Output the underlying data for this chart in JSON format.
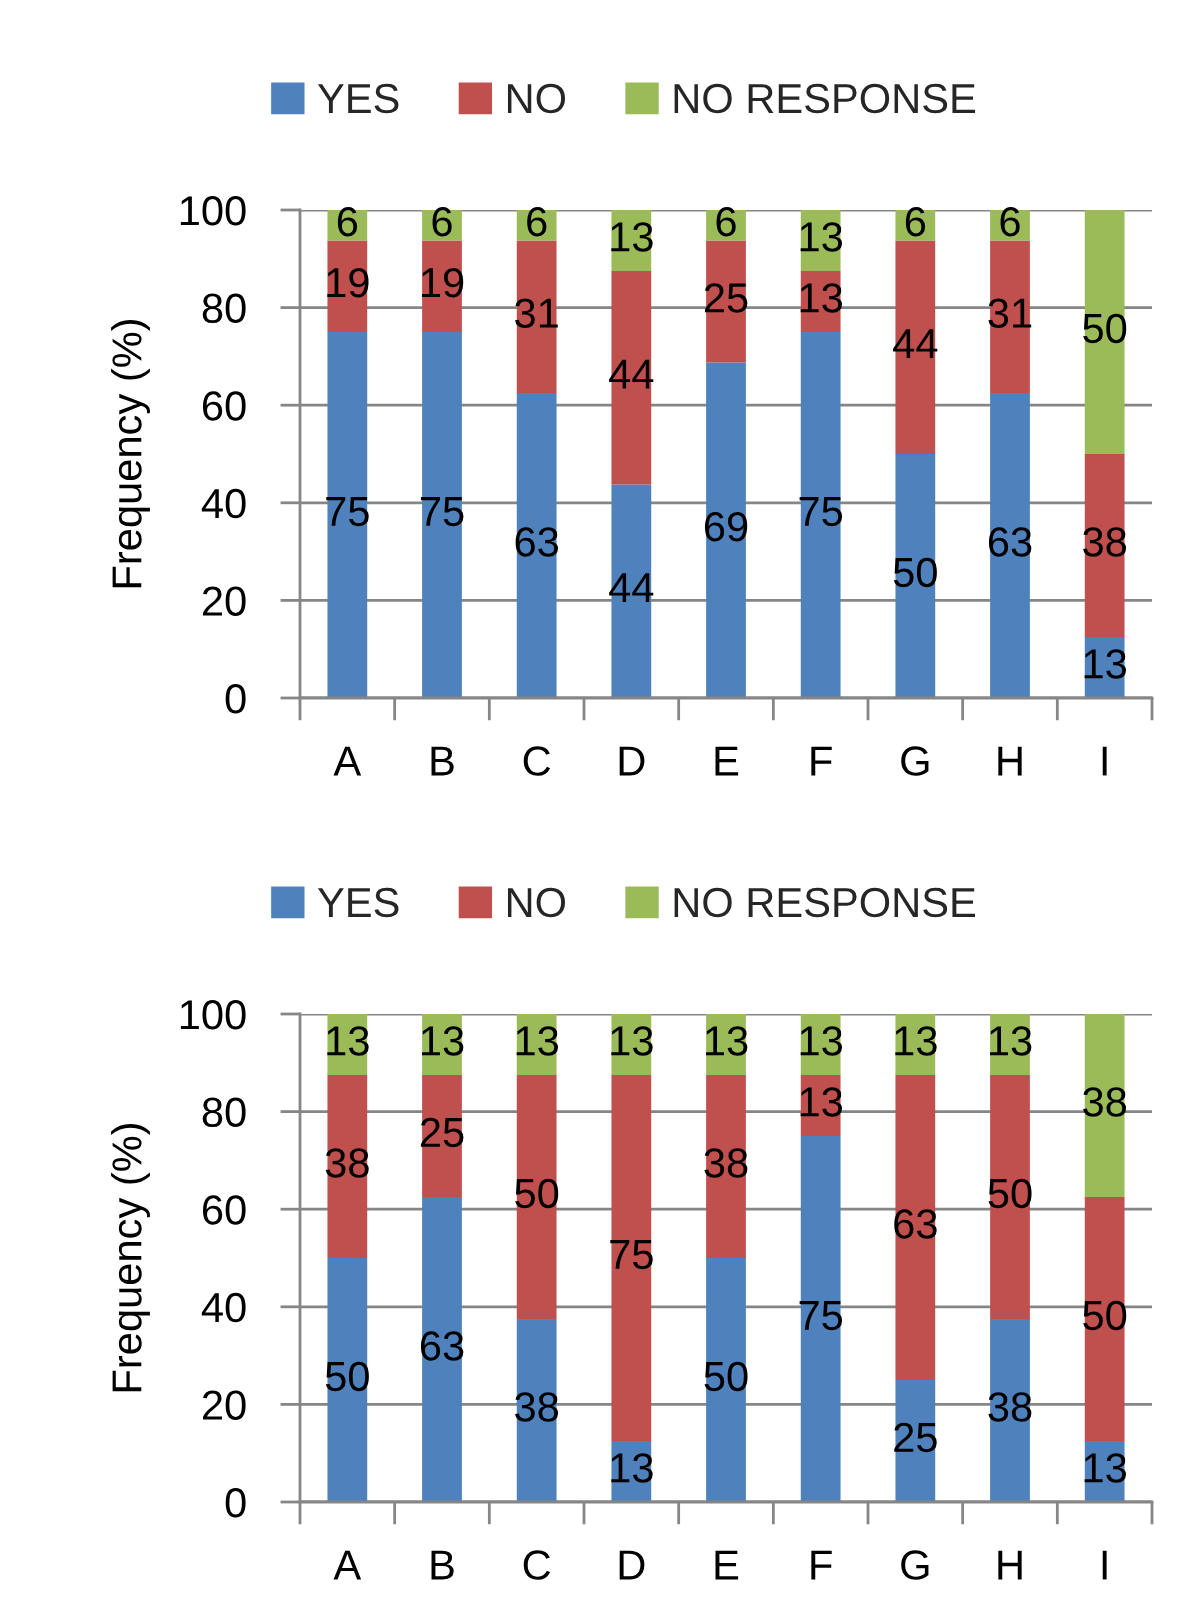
{
  "chart_data": [
    {
      "type": "bar",
      "stacked": true,
      "ylabel": "Frequency (%)",
      "categories": [
        "A",
        "B",
        "C",
        "D",
        "E",
        "F",
        "G",
        "H",
        "I"
      ],
      "series": [
        {
          "name": "YES",
          "color": "#4f81bd",
          "values": [
            75,
            75,
            62.5,
            43.75,
            68.75,
            75,
            50,
            62.5,
            12.5
          ],
          "value_labels": [
            "75",
            "75",
            "63",
            "44",
            "69",
            "75",
            "50",
            "63",
            "13"
          ]
        },
        {
          "name": "NO",
          "color": "#c0504d",
          "values": [
            18.75,
            18.75,
            31.25,
            43.75,
            25,
            12.5,
            43.75,
            31.25,
            37.5
          ],
          "value_labels": [
            "19",
            "19",
            "31",
            "44",
            "25",
            "13",
            "44",
            "31",
            "38"
          ]
        },
        {
          "name": "NO RESPONSE",
          "color": "#9bbb59",
          "values": [
            6.25,
            6.25,
            6.25,
            12.5,
            6.25,
            12.5,
            6.25,
            6.25,
            50
          ],
          "value_labels": [
            "6",
            "6",
            "6",
            "13",
            "6",
            "13",
            "6",
            "6",
            "50"
          ]
        }
      ],
      "ylim": [
        0,
        100
      ],
      "yticks": [
        0,
        20,
        40,
        60,
        80,
        100
      ],
      "grid": "y",
      "legend": "top"
    },
    {
      "type": "bar",
      "stacked": true,
      "ylabel": "Frequency (%)",
      "categories": [
        "A",
        "B",
        "C",
        "D",
        "E",
        "F",
        "G",
        "H",
        "I"
      ],
      "series": [
        {
          "name": "YES",
          "color": "#4f81bd",
          "values": [
            50,
            62.5,
            37.5,
            12.5,
            50,
            75,
            25,
            37.5,
            12.5
          ],
          "value_labels": [
            "50",
            "63",
            "38",
            "13",
            "50",
            "75",
            "25",
            "38",
            "13"
          ]
        },
        {
          "name": "NO",
          "color": "#c0504d",
          "values": [
            37.5,
            25,
            50,
            75,
            37.5,
            12.5,
            62.5,
            50,
            50
          ],
          "value_labels": [
            "38",
            "25",
            "50",
            "75",
            "38",
            "13",
            "63",
            "50",
            "50"
          ]
        },
        {
          "name": "NO RESPONSE",
          "color": "#9bbb59",
          "values": [
            12.5,
            12.5,
            12.5,
            12.5,
            12.5,
            12.5,
            12.5,
            12.5,
            37.5
          ],
          "value_labels": [
            "13",
            "13",
            "13",
            "13",
            "13",
            "13",
            "13",
            "13",
            "38"
          ]
        }
      ],
      "ylim": [
        0,
        100
      ],
      "yticks": [
        0,
        20,
        40,
        60,
        80,
        100
      ],
      "grid": "y",
      "legend": "top"
    }
  ]
}
